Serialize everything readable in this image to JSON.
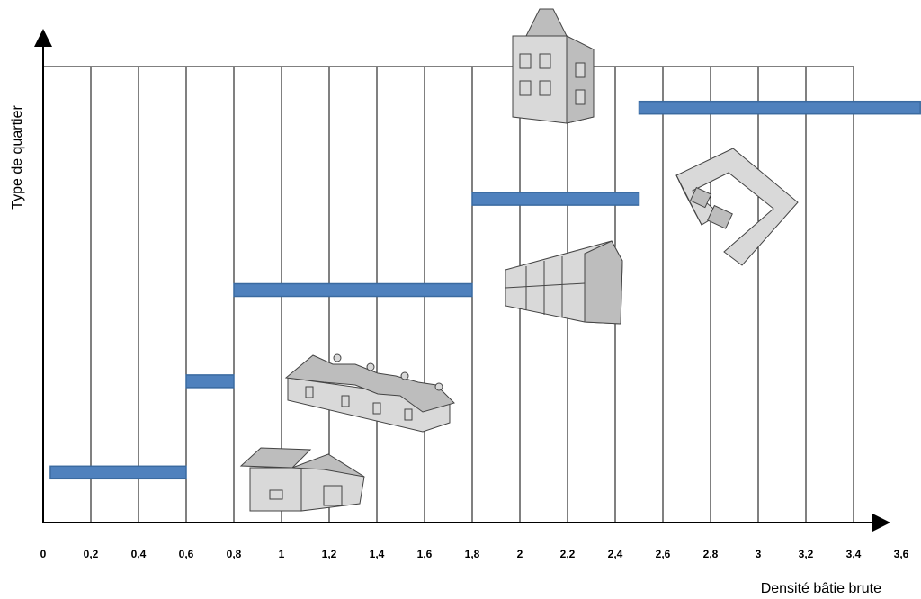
{
  "chart_data": {
    "type": "range-bar",
    "x_label": "Densité bâtie brute",
    "y_label": "Type de quartier",
    "categories": [
      null,
      null,
      null,
      null,
      null
    ],
    "values": [
      [
        0.03,
        0.6
      ],
      [
        0.6,
        0.8
      ],
      [
        0.8,
        1.8
      ],
      [
        1.8,
        2.5
      ],
      [
        2.5,
        3.68
      ]
    ],
    "color": "#4f81bd",
    "xlim": [
      0,
      3.6
    ],
    "xticks": [
      0,
      {
        "value": 0.2,
        "label": "0,2"
      },
      {
        "value": 0.4,
        "label": "0,4"
      },
      {
        "value": 0.6,
        "label": "0,6"
      },
      {
        "value": 0.8,
        "label": "0,8"
      },
      1,
      {
        "value": 1.2,
        "label": "1,2"
      },
      {
        "value": 1.4,
        "label": "1,4"
      },
      {
        "value": 1.6,
        "label": "1,6"
      },
      {
        "value": 1.8,
        "label": "1,8"
      },
      2,
      {
        "value": 2.2,
        "label": "2,2"
      },
      {
        "value": 2.4,
        "label": "2,4"
      },
      {
        "value": 2.6,
        "label": "2,6"
      },
      {
        "value": 2.8,
        "label": "2,8"
      },
      3,
      {
        "value": 3.2,
        "label": "3,2"
      },
      {
        "value": 3.4,
        "label": "3,4"
      },
      {
        "value": 3.6,
        "label": "3,6"
      }
    ],
    "grid": true
  }
}
